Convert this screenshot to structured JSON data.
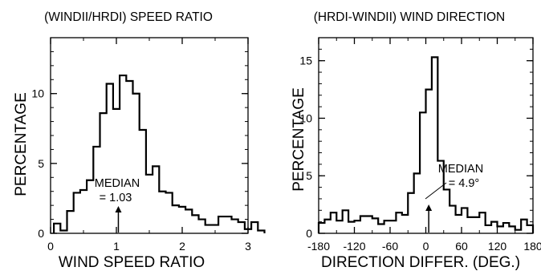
{
  "chart_data": [
    {
      "type": "bar",
      "title": "(WINDII/HRDI) SPEED RATIO",
      "xlabel": "WIND SPEED RATIO",
      "ylabel": "PERCENTAGE",
      "xlim": [
        0,
        3
      ],
      "ylim": [
        0,
        14
      ],
      "x_ticks": [
        "0",
        "1",
        "2",
        "3"
      ],
      "y_ticks": [
        "0",
        "5",
        "10"
      ],
      "bin_width": 0.1,
      "bin_start": 0.05,
      "values": [
        0.7,
        0.2,
        1.6,
        2.9,
        3.1,
        3.8,
        6.2,
        8.6,
        10.7,
        8.9,
        11.3,
        10.9,
        10.0,
        7.4,
        4.2,
        4.8,
        3.0,
        2.9,
        2.0,
        1.9,
        1.7,
        1.3,
        1.0,
        0.6,
        0.6,
        1.2,
        1.2,
        1.0,
        0.8,
        0.3,
        0.8,
        0.2
      ],
      "annotation": {
        "line1": "MEDIAN",
        "line2": "= 1.03",
        "x": 1.03
      },
      "grid": false
    },
    {
      "type": "bar",
      "title": "(HRDI-WINDII) WIND DIRECTION",
      "xlabel": "DIRECTION DIFFER. (DEG.)",
      "ylabel": "PERCENTAGE",
      "xlim": [
        -180,
        180
      ],
      "ylim": [
        0,
        17
      ],
      "x_ticks": [
        "-180",
        "-120",
        "-60",
        "0",
        "60",
        "120",
        "180"
      ],
      "y_ticks": [
        "0",
        "5",
        "10",
        "15"
      ],
      "bin_width": 10,
      "bin_start": -180,
      "values": [
        0.9,
        1.2,
        1.8,
        1.1,
        2.0,
        1.0,
        1.1,
        1.5,
        1.5,
        1.3,
        0.8,
        1.1,
        1.1,
        1.8,
        1.6,
        3.5,
        5.2,
        10.5,
        12.5,
        15.3,
        6.3,
        3.8,
        2.4,
        1.6,
        2.2,
        1.4,
        1.4,
        1.8,
        0.7,
        1.0,
        0.6,
        0.9,
        0.6,
        0.3,
        1.2,
        0.7
      ],
      "annotation": {
        "line1": "MEDIAN",
        "line2": "= 4.9°",
        "x": 4.9
      },
      "grid": false
    }
  ]
}
